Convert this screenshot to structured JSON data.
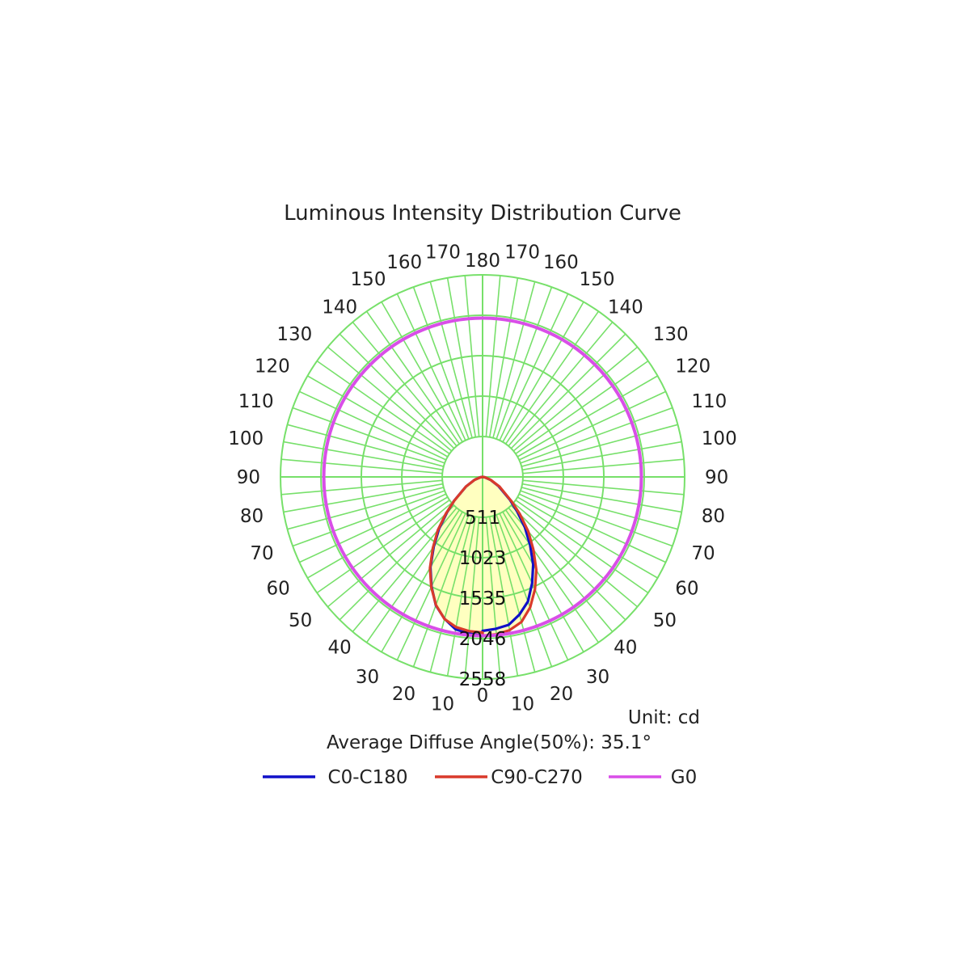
{
  "chart_data": {
    "type": "polar",
    "title": "Luminous Intensity Distribution Curve",
    "unit_text": "Unit: cd",
    "diffuse_angle_text": "Average Diffuse Angle(50%): 35.1°",
    "radial_max": 2558,
    "radial_ticks": [
      511,
      1023,
      1535,
      2046,
      2558
    ],
    "angle_ticks": [
      0,
      10,
      20,
      30,
      40,
      50,
      60,
      70,
      80,
      90,
      100,
      110,
      120,
      130,
      140,
      150,
      160,
      170,
      180
    ],
    "grid": true,
    "legend_position": "bottom",
    "colors": {
      "grid": "#77e06a",
      "fill": "#ffffc0",
      "c0": "#1010c8",
      "c90": "#d93a2b",
      "g0": "#d94ee8"
    },
    "series": [
      {
        "name": "C0-C180",
        "color": "#1010c8",
        "angles": [
          0,
          5,
          10,
          15,
          20,
          25,
          30,
          35,
          40,
          45,
          50,
          60,
          70,
          80,
          90
        ],
        "values": [
          2010,
          1990,
          1960,
          1860,
          1730,
          1530,
          1320,
          1080,
          860,
          640,
          470,
          240,
          110,
          30,
          0
        ]
      },
      {
        "name": "C90-C270",
        "color": "#d93a2b",
        "angles": [
          0,
          5,
          10,
          15,
          20,
          25,
          30,
          35,
          40,
          45,
          50,
          60,
          70,
          80,
          90
        ],
        "values": [
          2010,
          2000,
          1970,
          1900,
          1760,
          1570,
          1360,
          1120,
          900,
          670,
          480,
          250,
          110,
          30,
          0
        ]
      },
      {
        "name": "G0",
        "color": "#d94ee8",
        "constant": 2010
      }
    ]
  }
}
